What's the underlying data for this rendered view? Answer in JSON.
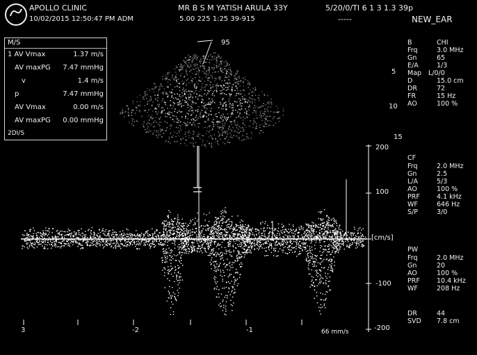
{
  "header": {
    "institution": "APOLLO CLINIC",
    "datetime": "10/02/2015 12:50:47 PM ADM",
    "patient": "MR B S M YATISH ARULA 33Y",
    "ti_info": "5/20/0/TI 6 1 3 1.3 39p",
    "probe_line": "5.00 225 1:25 39-915",
    "dashes": "-----",
    "preset": "NEW_EAR"
  },
  "measurements": {
    "title": "M/S",
    "rows": [
      {
        "label": "1 AV Vmax",
        "value": "1.37 m/s"
      },
      {
        "label": "AV maxPG",
        "value": "7.47 mmHg"
      },
      {
        "label": "v",
        "value": "1.4 m/s"
      },
      {
        "label": "p",
        "value": "7.47 mmHg"
      },
      {
        "label": "AV Vmax",
        "value": "0.00 m/s"
      },
      {
        "label": "AV maxPG",
        "value": "0.00 mmHg"
      }
    ],
    "footer": "2DI/S"
  },
  "sector_label": "95",
  "sector_depth_labels": [
    "5",
    "10",
    "15"
  ],
  "scale_labels": {
    "top": "200",
    "upper": "100",
    "unit": "[cm/s]",
    "lower": "-100",
    "bottom": "-200"
  },
  "time_labels": [
    "3",
    "-2",
    "-1"
  ],
  "sweep_label": "66 mm/s",
  "params_b": [
    {
      "k": "B",
      "v": "CHI"
    },
    {
      "k": "Frq",
      "v": "3.0 MHz"
    },
    {
      "k": "Gn",
      "v": "65"
    },
    {
      "k": "E/A",
      "v": "1/3"
    },
    {
      "k": "Map",
      "v": "L/0/0"
    },
    {
      "k": "D",
      "v": "15.0 cm"
    },
    {
      "k": "DR",
      "v": "72"
    },
    {
      "k": "FR",
      "v": "15 Hz"
    },
    {
      "k": "AO",
      "v": "100 %"
    }
  ],
  "params_cf": [
    {
      "k": "CF",
      "v": ""
    },
    {
      "k": "Frq",
      "v": "2.0 MHz"
    },
    {
      "k": "Gn",
      "v": "2.5"
    },
    {
      "k": "L/A",
      "v": "5/3"
    },
    {
      "k": "AO",
      "v": "100 %"
    },
    {
      "k": "PRF",
      "v": "4.1 kHz"
    },
    {
      "k": "WF",
      "v": "646 Hz"
    },
    {
      "k": "S/P",
      "v": "3/0"
    }
  ],
  "params_pw": [
    {
      "k": "PW",
      "v": ""
    },
    {
      "k": "Frq",
      "v": "2.0 MHz"
    },
    {
      "k": "Gn",
      "v": "20"
    },
    {
      "k": "AO",
      "v": "100 %"
    },
    {
      "k": "PRF",
      "v": "10.4 kHz"
    },
    {
      "k": "WF",
      "v": "208 Hz"
    }
  ],
  "params_dr": [
    {
      "k": "DR",
      "v": "44"
    },
    {
      "k": "SVD",
      "v": "7.8 cm"
    }
  ]
}
